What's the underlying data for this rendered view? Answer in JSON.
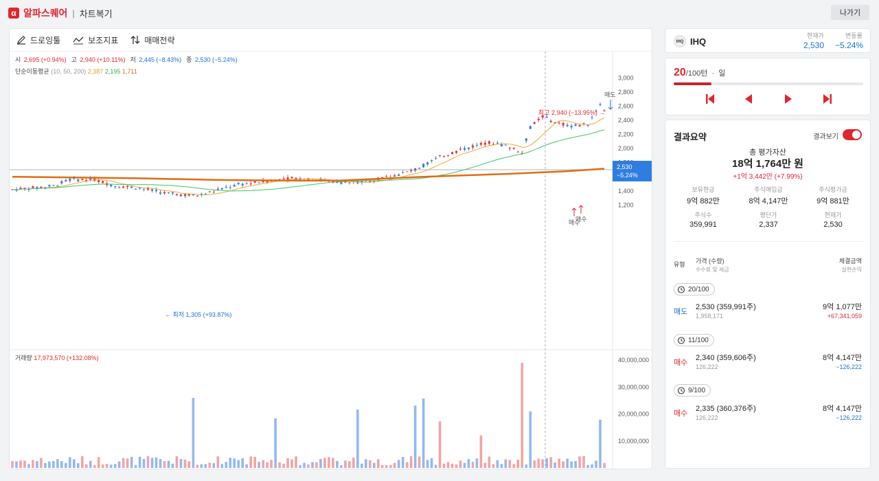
{
  "app": {
    "logo_mark": "α",
    "name": "알파스퀘어",
    "separator": "|",
    "page": "차트복기",
    "exit_label": "나가기"
  },
  "toolbar": {
    "drawing": "드로잉툴",
    "indicators": "보조지표",
    "strategy": "매매전략"
  },
  "legend": {
    "open_label": "시",
    "open_value": "2,695 (+0.94%)",
    "high_label": "고",
    "high_value": "2,940 (+10.11%)",
    "low_label": "저",
    "low_value": "2,445 (−8.43%)",
    "close_label": "종",
    "close_value": "2,530 (−5.24%)",
    "ma_label": "단순이동평균",
    "ma_params": "(10, 50, 200)",
    "ma1": "2,387",
    "ma2": "2,195",
    "ma3": "1,711",
    "volume_label": "거래량",
    "volume_value": "17,973,570 (+132.08%)"
  },
  "annotations": {
    "high": "최고 2,940 (−13.95%)",
    "low": "최저 1,305 (+93.87%)",
    "sell": "매도",
    "buy": "매수",
    "price_tag_value": "2,530",
    "price_tag_change": "−5.24%"
  },
  "price_axis": [
    "3,000",
    "2,800",
    "2,600",
    "2,400",
    "2,200",
    "2,000",
    "1,800",
    "1,600",
    "1,400",
    "1,200"
  ],
  "volume_axis": [
    "40,000,000",
    "30,000,000",
    "20,000,000",
    "10,000,000"
  ],
  "colors": {
    "up": "#e53a3a",
    "down": "#3d7fe0",
    "ma10": "#f0a830",
    "ma50": "#3cc46a",
    "ma200": "#e06c10",
    "accent": "#e0262d"
  },
  "stock": {
    "logo": "IHQ",
    "name": "IHQ",
    "price_label": "현재가",
    "price": "2,530",
    "change_label": "변동률",
    "change": "−5.24%"
  },
  "turn": {
    "current": "20",
    "total": "/100턴",
    "dot": "·",
    "unit": "일",
    "progress": 0.2
  },
  "result": {
    "title": "결과요약",
    "toggle_label": "결과보기",
    "total_label": "총 평가자산",
    "total_value": "18억 1,764만 원",
    "total_change": "+1억 3,442만 (+7.99%)",
    "stats": [
      {
        "label": "보유현금",
        "value": "9억 882만"
      },
      {
        "label": "주식매입금",
        "value": "8억 4,147만"
      },
      {
        "label": "주식평가금",
        "value": "9억 881만"
      },
      {
        "label": "주식수",
        "value": "359,991"
      },
      {
        "label": "평단가",
        "value": "2,337"
      },
      {
        "label": "현재가",
        "value": "2,530"
      }
    ],
    "col_type": "유형",
    "col_price": "가격 (수량)",
    "col_price_sub": "수수료 및 세금",
    "col_amount": "체결금액",
    "col_amount_sub": "실현손익",
    "trades": [
      {
        "turn": "20/100",
        "type": "매도",
        "price": "2,530 (359,991주)",
        "fee": "1,958,171",
        "amount": "9억 1,077만",
        "pnl": "+67,341,059"
      },
      {
        "turn": "11/100",
        "type": "매수",
        "price": "2,340 (359,606주)",
        "fee": "126,222",
        "amount": "8억 4,147만",
        "pnl": "−126,222"
      },
      {
        "turn": "9/100",
        "type": "매수",
        "price": "2,335 (360,376주)",
        "fee": "126,222",
        "amount": "8억 4,147만",
        "pnl": "−126,222"
      }
    ]
  }
}
